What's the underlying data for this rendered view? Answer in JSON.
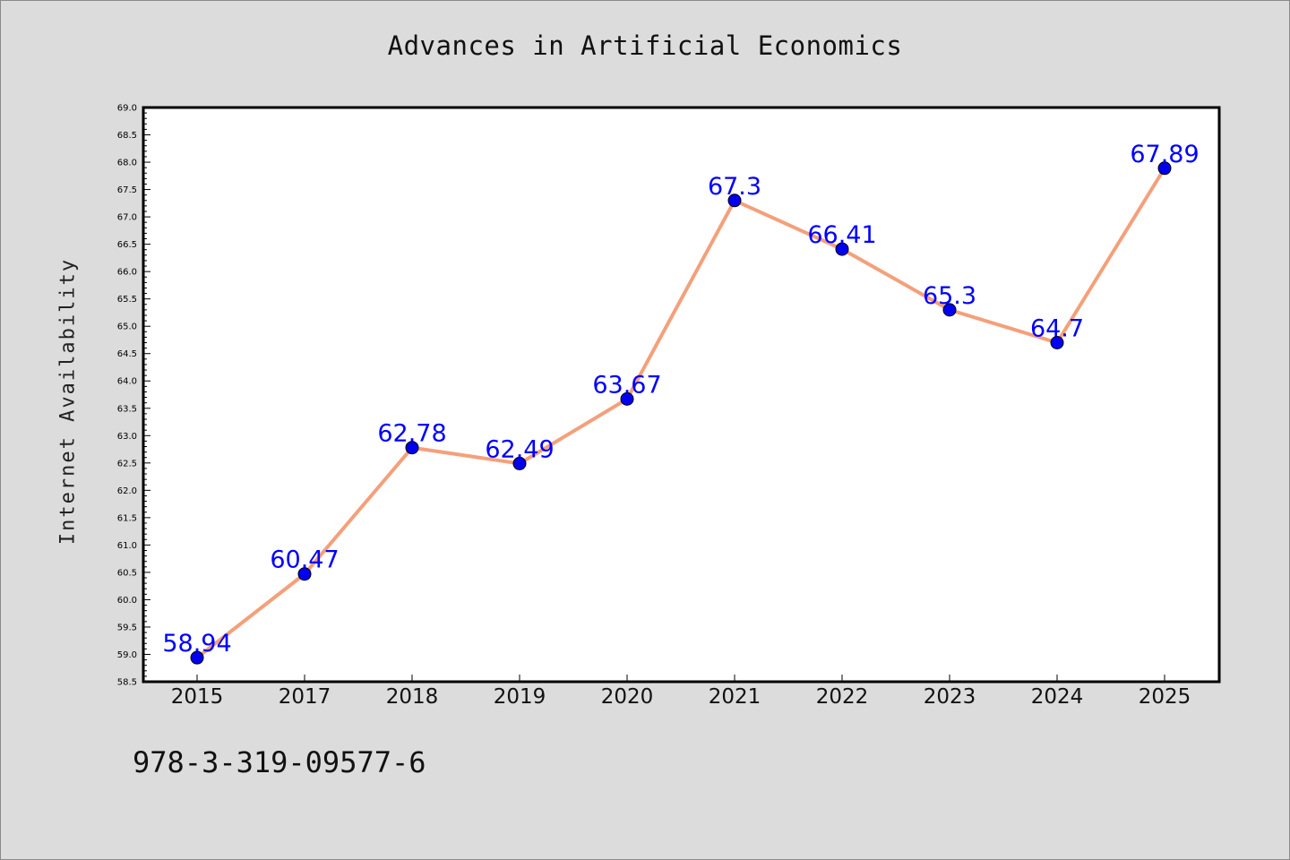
{
  "chart_data": {
    "type": "line",
    "title": "Advances in Artificial Economics",
    "xlabel": "",
    "ylabel": "Internet Availability",
    "categories": [
      "2015",
      "2017",
      "2018",
      "2019",
      "2020",
      "2021",
      "2022",
      "2023",
      "2024",
      "2025"
    ],
    "series": [
      {
        "values": [
          58.94,
          60.47,
          62.78,
          62.49,
          63.67,
          67.3,
          66.41,
          65.3,
          64.7,
          67.89
        ],
        "labels": [
          "58.94",
          "60.47",
          "62.78",
          "62.49",
          "63.67",
          "67.3",
          "66.41",
          "65.3",
          "64.7",
          "67.89"
        ]
      }
    ],
    "ylim": [
      58.5,
      69.0
    ],
    "y_ticks": [
      "58.5",
      "59.0",
      "59.5",
      "60.0",
      "60.5",
      "61.0",
      "61.5",
      "62.0",
      "62.5",
      "63.0",
      "63.5",
      "64.0",
      "64.5",
      "65.0",
      "65.5",
      "66.0",
      "66.5",
      "67.0",
      "67.5",
      "68.0",
      "68.5",
      "69.0"
    ],
    "grid": false,
    "line_color": "#f4a07a",
    "marker_color": "#0000ee",
    "label_color": "#0000ff"
  },
  "footer": {
    "isbn": "978-3-319-09577-6"
  }
}
